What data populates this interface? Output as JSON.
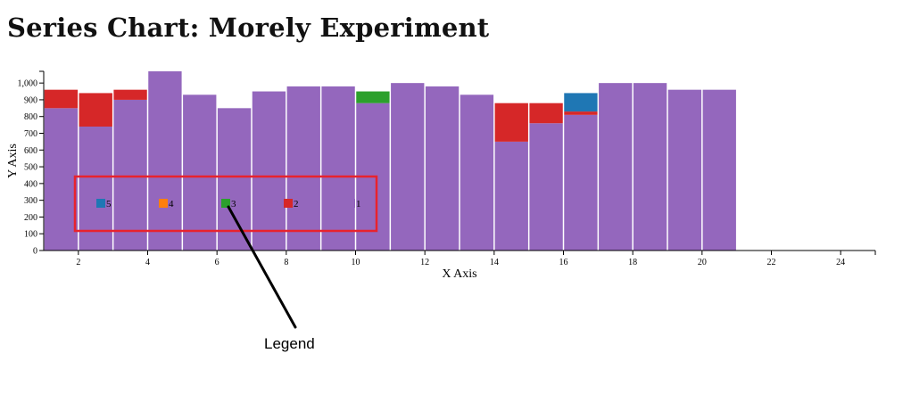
{
  "page": {
    "title": "Series Chart: Morely Experiment"
  },
  "chart_data": {
    "type": "bar",
    "stacked": true,
    "title": "Series Chart: Morely Experiment",
    "xlabel": "X Axis",
    "ylabel": "Y Axis",
    "xlim": [
      1,
      25
    ],
    "ylim": [
      0,
      1070
    ],
    "x_ticks": [
      2,
      4,
      6,
      8,
      10,
      12,
      14,
      16,
      18,
      20,
      22,
      24
    ],
    "y_ticks": [
      0,
      100,
      200,
      300,
      400,
      500,
      600,
      700,
      800,
      900,
      1000
    ],
    "y_tick_labels": [
      "0",
      "100",
      "200",
      "300",
      "400",
      "500",
      "600",
      "700",
      "800",
      "900",
      "1,000"
    ],
    "categories": [
      1,
      2,
      3,
      4,
      5,
      6,
      7,
      8,
      9,
      10,
      11,
      12,
      13,
      14,
      15,
      16,
      17,
      18,
      19,
      20
    ],
    "series": [
      {
        "name": "1",
        "color": "#9467bd",
        "values": [
          850,
          740,
          900,
          1070,
          930,
          850,
          950,
          980,
          980,
          880,
          1000,
          980,
          930,
          650,
          760,
          810,
          1000,
          1000,
          960,
          960
        ]
      },
      {
        "name": "2",
        "color": "#d62728",
        "values": [
          110,
          200,
          60,
          0,
          0,
          0,
          0,
          0,
          0,
          0,
          0,
          0,
          0,
          230,
          120,
          20,
          0,
          0,
          0,
          0
        ]
      },
      {
        "name": "3",
        "color": "#2ca02c",
        "values": [
          0,
          0,
          0,
          0,
          0,
          0,
          0,
          0,
          0,
          70,
          0,
          0,
          0,
          0,
          0,
          0,
          0,
          0,
          0,
          0
        ]
      },
      {
        "name": "4",
        "color": "#ff7f0e",
        "values": [
          0,
          0,
          0,
          0,
          0,
          0,
          0,
          0,
          0,
          0,
          0,
          0,
          0,
          0,
          0,
          0,
          0,
          0,
          0,
          0
        ]
      },
      {
        "name": "5",
        "color": "#1f77b4",
        "values": [
          0,
          0,
          0,
          0,
          0,
          0,
          0,
          0,
          0,
          0,
          0,
          0,
          0,
          0,
          0,
          0,
          0,
          0,
          0,
          0
        ]
      },
      {
        "name": "",
        "color": "#1f77b4",
        "values": [
          0,
          0,
          0,
          0,
          0,
          0,
          0,
          0,
          0,
          0,
          0,
          0,
          0,
          0,
          0,
          110,
          0,
          0,
          0,
          0
        ]
      }
    ],
    "legend": {
      "items": [
        {
          "label": "5",
          "color": "#1f77b4"
        },
        {
          "label": "4",
          "color": "#ff7f0e"
        },
        {
          "label": "3",
          "color": "#2ca02c"
        },
        {
          "label": "2",
          "color": "#d62728"
        },
        {
          "label": "1",
          "color": "#9467bd"
        }
      ],
      "highlight_color": "#e8222d"
    },
    "annotation": {
      "text": "Legend"
    }
  }
}
